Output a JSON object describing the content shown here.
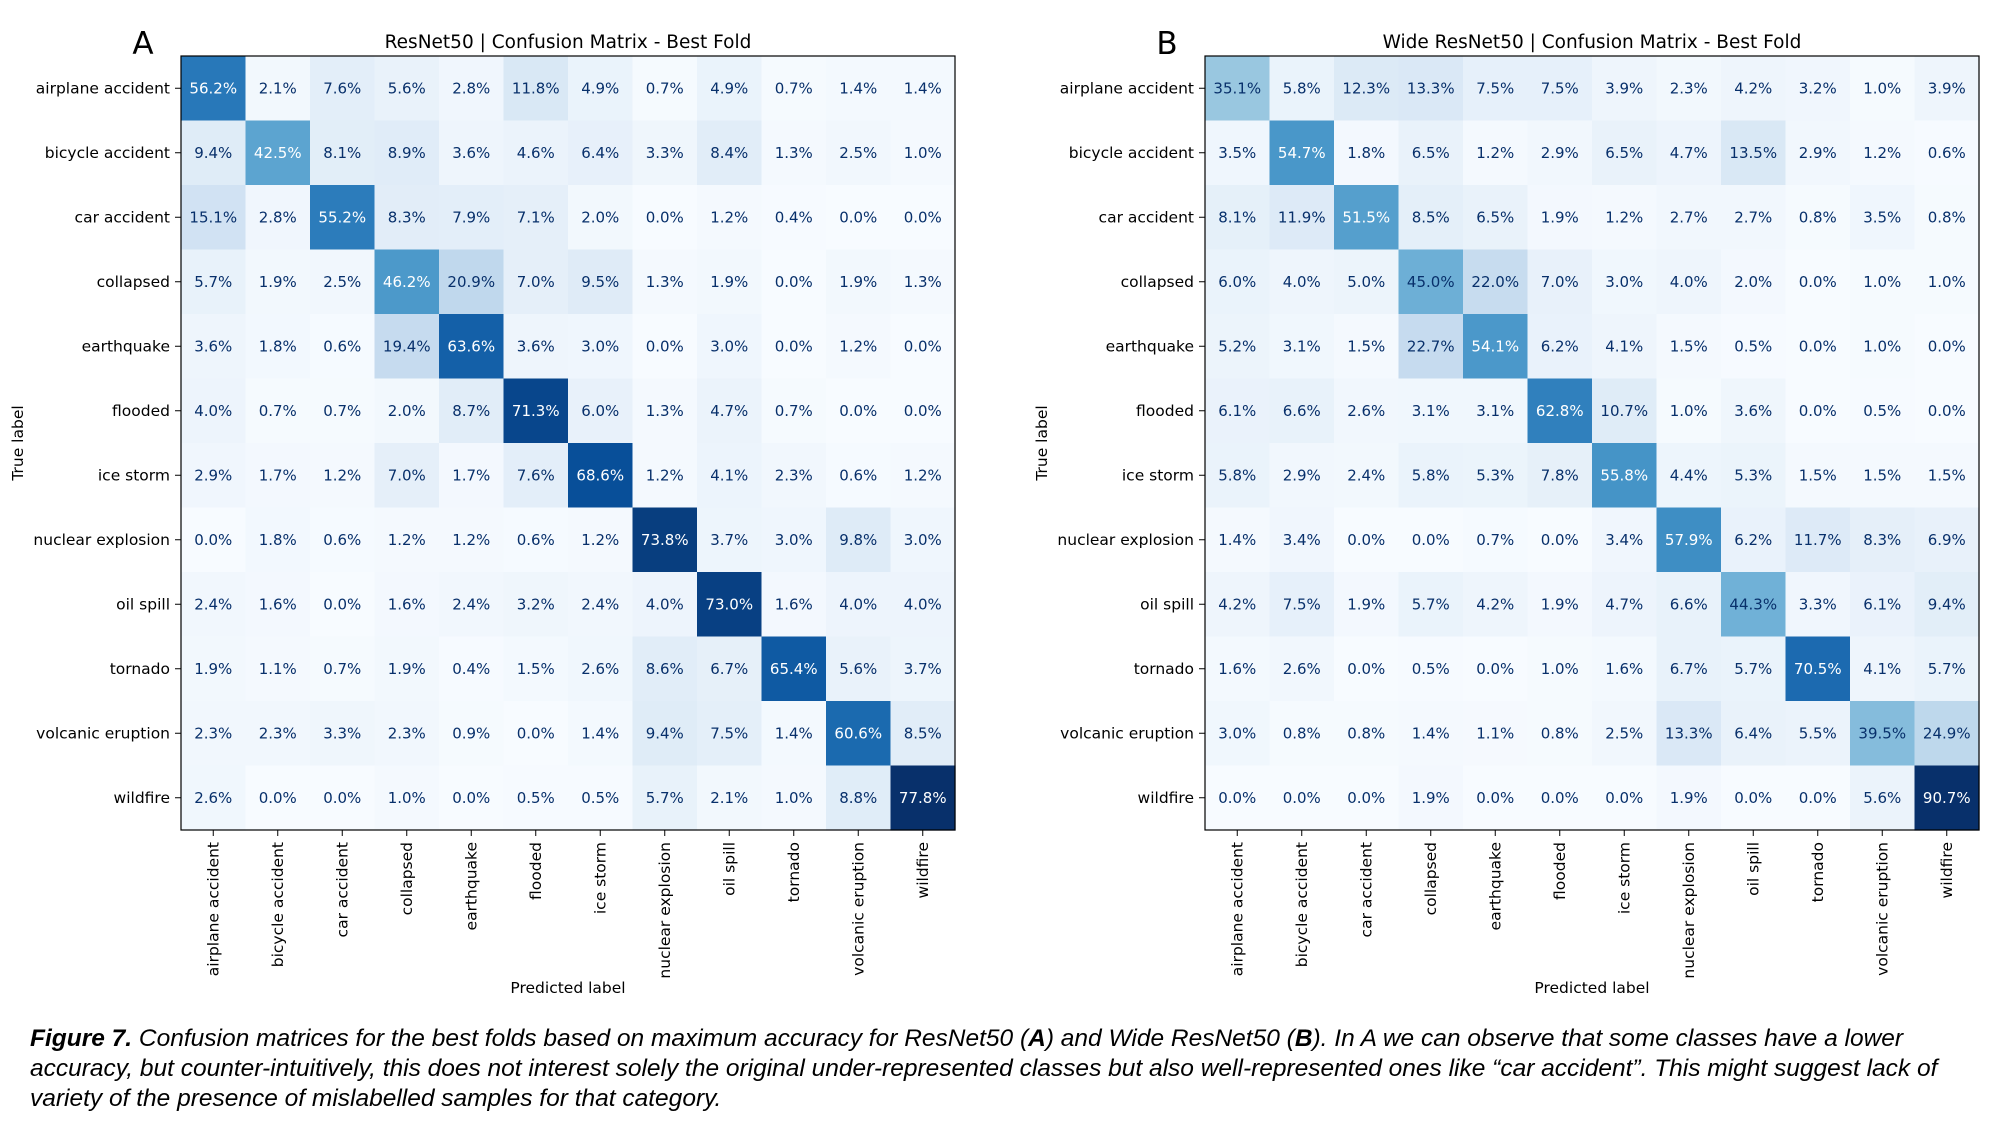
{
  "figure": {
    "caption": {
      "label": "Figure 7.",
      "parts": [
        "Confusion matrices for the best folds based on maximum accuracy for ResNet50 (",
        "A",
        ") and Wide ResNet50 (",
        "B",
        "). In A we can observe that some classes have a lower accuracy, but counter-intuitively, this does not interest solely the original under-represented classes but also well-represented ones like “car accident”. This might suggest lack of variety of the presence of mislabelled samples for that category."
      ]
    }
  },
  "chart_data": [
    {
      "type": "heatmap",
      "panel_label": "A",
      "title": "ResNet50 | Confusion Matrix - Best Fold",
      "xlabel": "Predicted label",
      "ylabel": "True label",
      "colormap": "Blues",
      "value_format": "percent",
      "labels": [
        "airplane accident",
        "bicycle accident",
        "car accident",
        "collapsed",
        "earthquake",
        "flooded",
        "ice storm",
        "nuclear explosion",
        "oil spill",
        "tornado",
        "volcanic eruption",
        "wildfire"
      ],
      "matrix": [
        [
          56.2,
          2.1,
          7.6,
          5.6,
          2.8,
          11.8,
          4.9,
          0.7,
          4.9,
          0.7,
          1.4,
          1.4
        ],
        [
          9.4,
          42.5,
          8.1,
          8.9,
          3.6,
          4.6,
          6.4,
          3.3,
          8.4,
          1.3,
          2.5,
          1.0
        ],
        [
          15.1,
          2.8,
          55.2,
          8.3,
          7.9,
          7.1,
          2.0,
          0.0,
          1.2,
          0.4,
          0.0,
          0.0
        ],
        [
          5.7,
          1.9,
          2.5,
          46.2,
          20.9,
          7.0,
          9.5,
          1.3,
          1.9,
          0.0,
          1.9,
          1.3
        ],
        [
          3.6,
          1.8,
          0.6,
          19.4,
          63.6,
          3.6,
          3.0,
          0.0,
          3.0,
          0.0,
          1.2,
          0.0
        ],
        [
          4.0,
          0.7,
          0.7,
          2.0,
          8.7,
          71.3,
          6.0,
          1.3,
          4.7,
          0.7,
          0.0,
          0.0
        ],
        [
          2.9,
          1.7,
          1.2,
          7.0,
          1.7,
          7.6,
          68.6,
          1.2,
          4.1,
          2.3,
          0.6,
          1.2
        ],
        [
          0.0,
          1.8,
          0.6,
          1.2,
          1.2,
          0.6,
          1.2,
          73.8,
          3.7,
          3.0,
          9.8,
          3.0
        ],
        [
          2.4,
          1.6,
          0.0,
          1.6,
          2.4,
          3.2,
          2.4,
          4.0,
          73.0,
          1.6,
          4.0,
          4.0
        ],
        [
          1.9,
          1.1,
          0.7,
          1.9,
          0.4,
          1.5,
          2.6,
          8.6,
          6.7,
          65.4,
          5.6,
          3.7
        ],
        [
          2.3,
          2.3,
          3.3,
          2.3,
          0.9,
          0.0,
          1.4,
          9.4,
          7.5,
          1.4,
          60.6,
          8.5
        ],
        [
          2.6,
          0.0,
          0.0,
          1.0,
          0.0,
          0.5,
          0.5,
          5.7,
          2.1,
          1.0,
          8.8,
          77.8
        ]
      ]
    },
    {
      "type": "heatmap",
      "panel_label": "B",
      "title": "Wide ResNet50 | Confusion Matrix - Best Fold",
      "xlabel": "Predicted label",
      "ylabel": "True label",
      "colormap": "Blues",
      "value_format": "percent",
      "labels": [
        "airplane accident",
        "bicycle accident",
        "car accident",
        "collapsed",
        "earthquake",
        "flooded",
        "ice storm",
        "nuclear explosion",
        "oil spill",
        "tornado",
        "volcanic eruption",
        "wildfire"
      ],
      "matrix": [
        [
          35.1,
          5.8,
          12.3,
          13.3,
          7.5,
          7.5,
          3.9,
          2.3,
          4.2,
          3.2,
          1.0,
          3.9
        ],
        [
          3.5,
          54.7,
          1.8,
          6.5,
          1.2,
          2.9,
          6.5,
          4.7,
          13.5,
          2.9,
          1.2,
          0.6
        ],
        [
          8.1,
          11.9,
          51.5,
          8.5,
          6.5,
          1.9,
          1.2,
          2.7,
          2.7,
          0.8,
          3.5,
          0.8
        ],
        [
          6.0,
          4.0,
          5.0,
          45.0,
          22.0,
          7.0,
          3.0,
          4.0,
          2.0,
          0.0,
          1.0,
          1.0
        ],
        [
          5.2,
          3.1,
          1.5,
          22.7,
          54.1,
          6.2,
          4.1,
          1.5,
          0.5,
          0.0,
          1.0,
          0.0
        ],
        [
          6.1,
          6.6,
          2.6,
          3.1,
          3.1,
          62.8,
          10.7,
          1.0,
          3.6,
          0.0,
          0.5,
          0.0
        ],
        [
          5.8,
          2.9,
          2.4,
          5.8,
          5.3,
          7.8,
          55.8,
          4.4,
          5.3,
          1.5,
          1.5,
          1.5
        ],
        [
          1.4,
          3.4,
          0.0,
          0.0,
          0.7,
          0.0,
          3.4,
          57.9,
          6.2,
          11.7,
          8.3,
          6.9
        ],
        [
          4.2,
          7.5,
          1.9,
          5.7,
          4.2,
          1.9,
          4.7,
          6.6,
          44.3,
          3.3,
          6.1,
          9.4
        ],
        [
          1.6,
          2.6,
          0.0,
          0.5,
          0.0,
          1.0,
          1.6,
          6.7,
          5.7,
          70.5,
          4.1,
          5.7
        ],
        [
          3.0,
          0.8,
          0.8,
          1.4,
          1.1,
          0.8,
          2.5,
          13.3,
          6.4,
          5.5,
          39.5,
          24.9
        ],
        [
          0.0,
          0.0,
          0.0,
          1.9,
          0.0,
          0.0,
          0.0,
          1.9,
          0.0,
          0.0,
          5.6,
          90.7
        ]
      ]
    }
  ]
}
